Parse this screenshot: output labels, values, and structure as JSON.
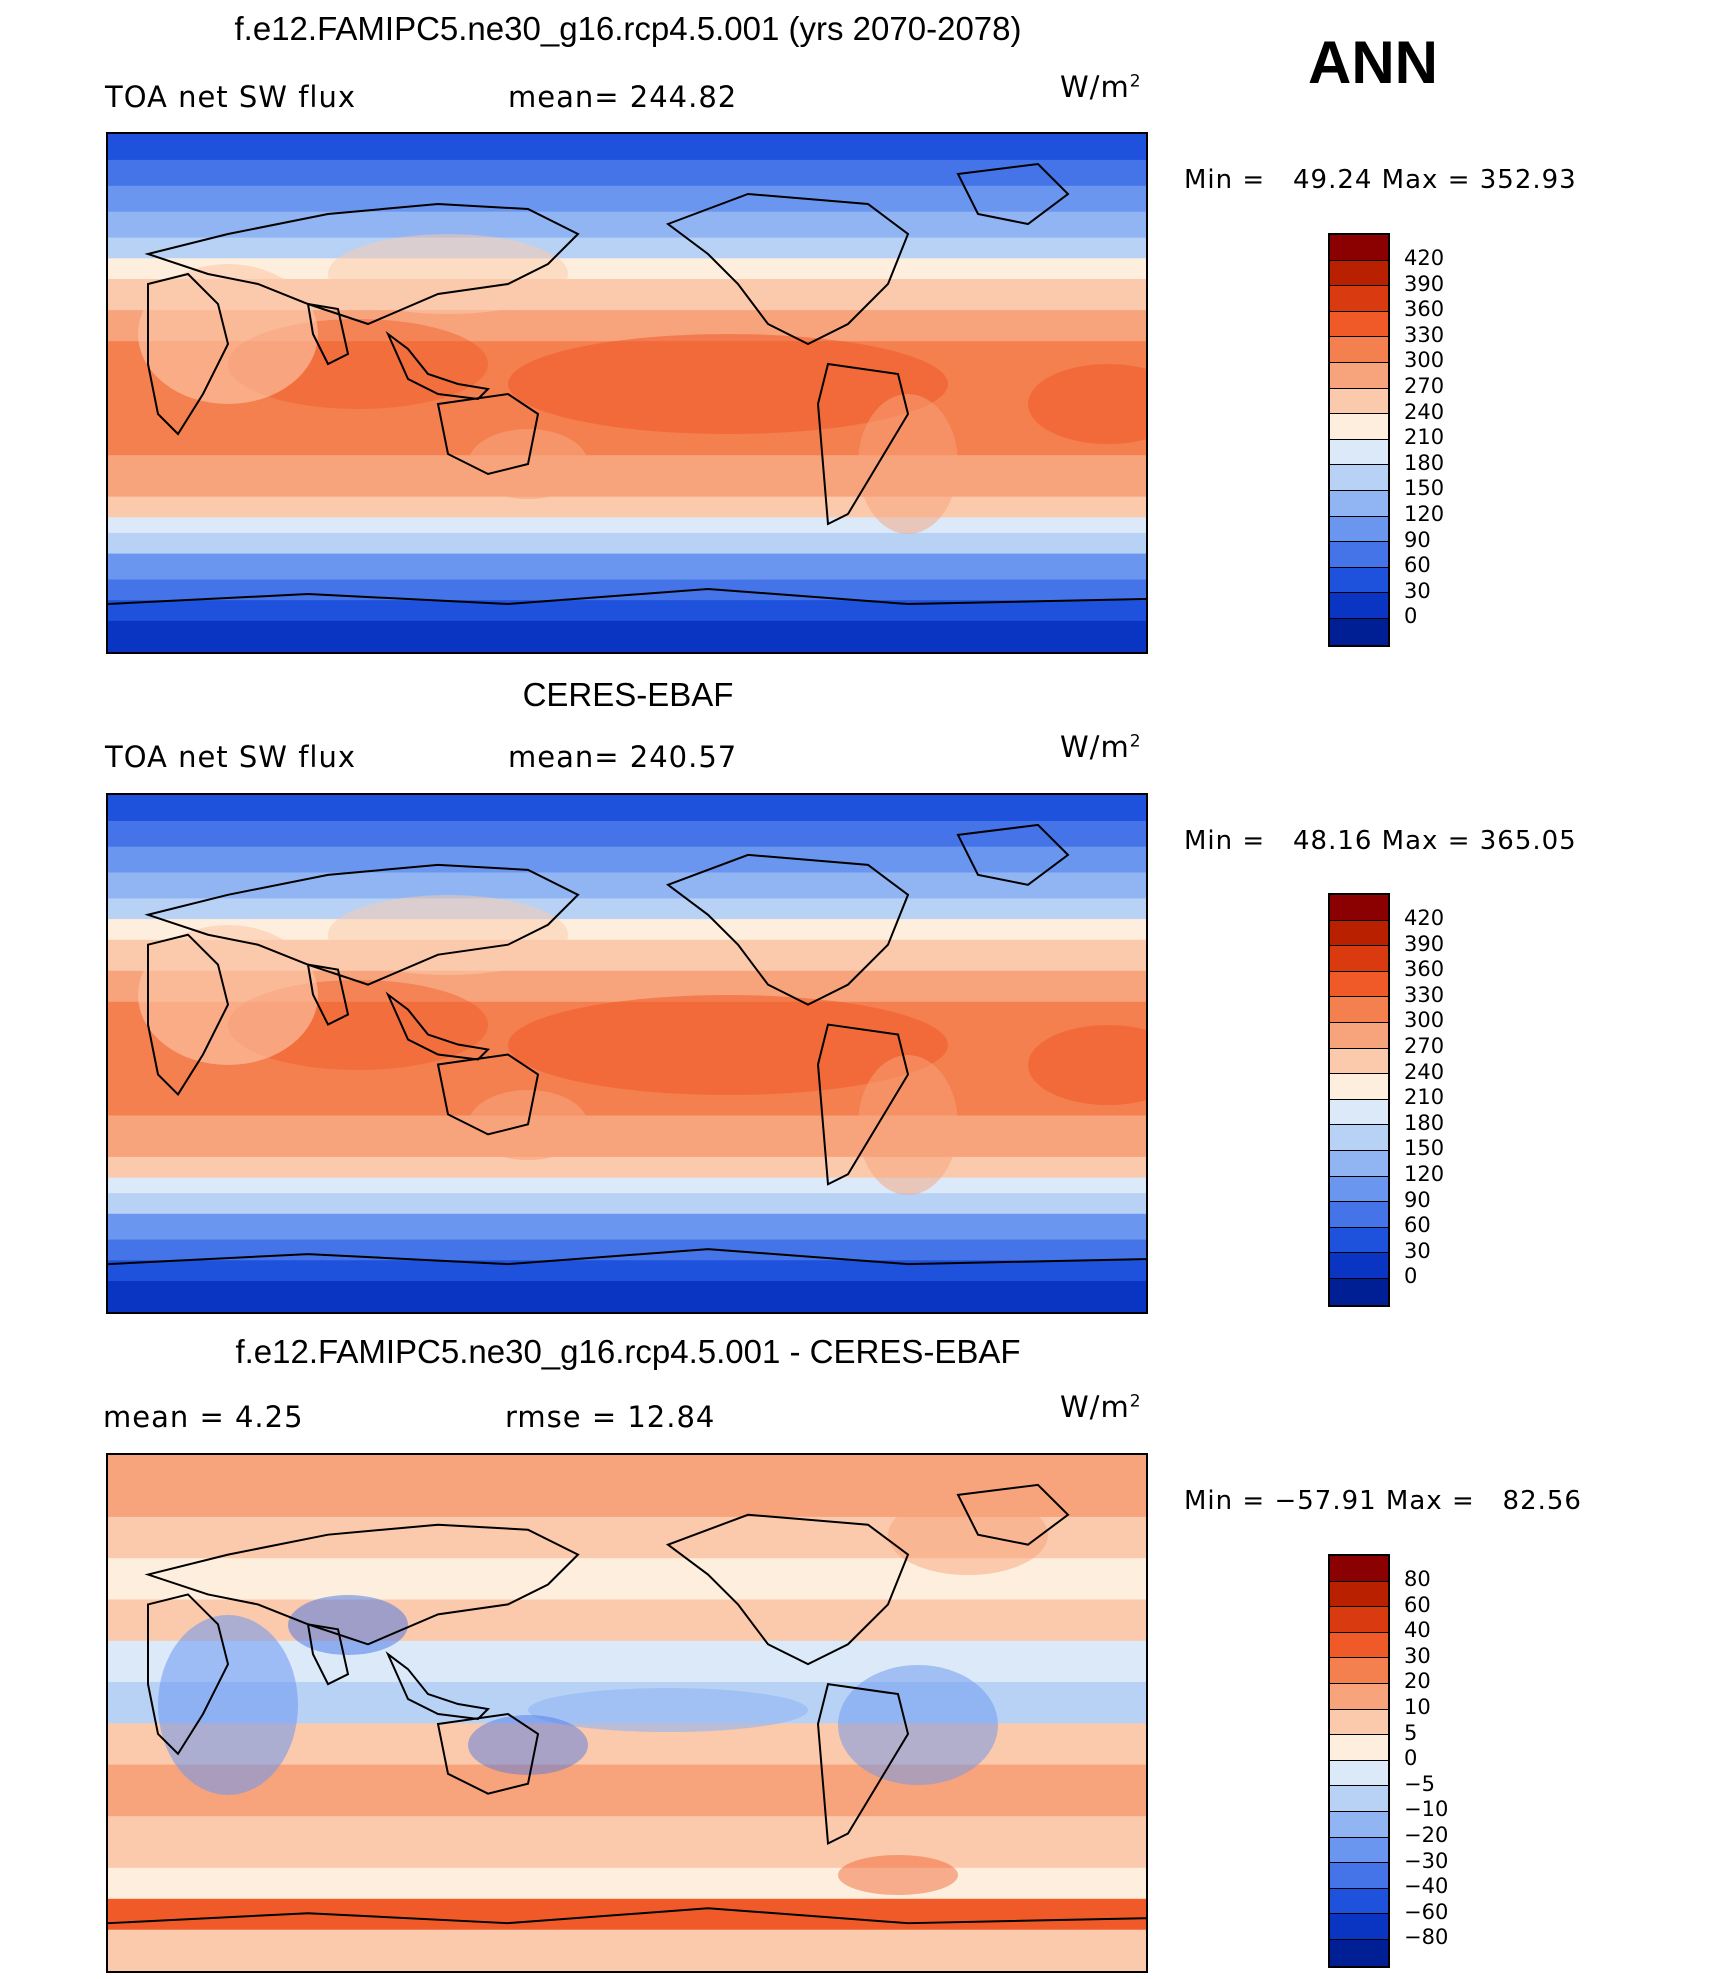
{
  "season": "ANN",
  "unit_text": "W/m",
  "unit_exp": "2",
  "panels": [
    {
      "title": "f.e12.FAMIPC5.ne30_g16.rcp4.5.001 (yrs 2070-2078)",
      "left_text": "TOA net SW flux",
      "center_text": "mean= 244.82",
      "minmax": "Min =   49.24 Max = 352.93",
      "map_kind": "abs"
    },
    {
      "title": "CERES-EBAF",
      "left_text": "TOA net SW flux",
      "center_text": "mean= 240.57",
      "minmax": "Min =   48.16 Max = 365.05",
      "map_kind": "abs"
    },
    {
      "title": "f.e12.FAMIPC5.ne30_g16.rcp4.5.001 - CERES-EBAF",
      "left_text": "mean =     4.25",
      "center_text": "rmse =    12.84",
      "minmax": "Min = −57.91 Max =   82.56",
      "map_kind": "diff"
    }
  ],
  "colorbars": {
    "abs": {
      "labels": [
        "420",
        "390",
        "360",
        "330",
        "300",
        "270",
        "240",
        "210",
        "180",
        "150",
        "120",
        "90",
        "60",
        "30",
        "0"
      ],
      "colors": [
        "#8b0000",
        "#b82000",
        "#d93a10",
        "#f05a28",
        "#f47f4f",
        "#f7a47c",
        "#fbc9ab",
        "#feeedd",
        "#dbe9f8",
        "#b8d2f6",
        "#91b5f3",
        "#6a96f0",
        "#4474e8",
        "#1e51dc",
        "#0a35c2",
        "#001f95"
      ]
    },
    "diff": {
      "labels": [
        "80",
        "60",
        "40",
        "30",
        "20",
        "10",
        "5",
        "0",
        "−5",
        "−10",
        "−20",
        "−30",
        "−40",
        "−60",
        "−80"
      ],
      "colors": [
        "#8b0000",
        "#b82000",
        "#d93a10",
        "#f05a28",
        "#f47f4f",
        "#f7a47c",
        "#fbc9ab",
        "#feeedd",
        "#dbe9f8",
        "#b8d2f6",
        "#91b5f3",
        "#6a96f0",
        "#4474e8",
        "#1e51dc",
        "#0a35c2",
        "#001f95"
      ]
    }
  }
}
